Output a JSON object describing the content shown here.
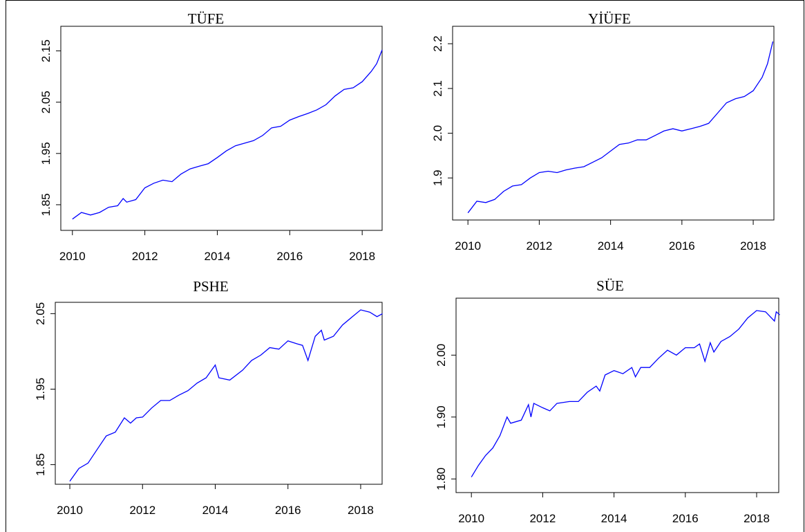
{
  "chart_data": [
    {
      "type": "line",
      "title": "TÜFE",
      "color": "#0000ff",
      "x": [
        2010.0,
        2010.25,
        2010.5,
        2010.75,
        2011.0,
        2011.25,
        2011.4,
        2011.5,
        2011.75,
        2012.0,
        2012.25,
        2012.5,
        2012.75,
        2013.0,
        2013.25,
        2013.5,
        2013.75,
        2014.0,
        2014.25,
        2014.5,
        2014.75,
        2015.0,
        2015.25,
        2015.5,
        2015.75,
        2016.0,
        2016.25,
        2016.5,
        2016.75,
        2017.0,
        2017.25,
        2017.5,
        2017.75,
        2018.0,
        2018.25,
        2018.4,
        2018.55
      ],
      "values": [
        1.822,
        1.835,
        1.83,
        1.835,
        1.845,
        1.848,
        1.862,
        1.855,
        1.86,
        1.883,
        1.892,
        1.898,
        1.895,
        1.91,
        1.92,
        1.925,
        1.93,
        1.942,
        1.955,
        1.965,
        1.97,
        1.975,
        1.985,
        2.0,
        2.003,
        2.015,
        2.022,
        2.028,
        2.035,
        2.045,
        2.062,
        2.075,
        2.078,
        2.09,
        2.11,
        2.125,
        2.152
      ],
      "xlim": [
        2009.68,
        2018.55
      ],
      "xticks": [
        2010,
        2012,
        2014,
        2016,
        2018
      ],
      "ylim": [
        1.8,
        2.198
      ],
      "yticks": [
        1.85,
        1.95,
        2.05,
        2.15
      ]
    },
    {
      "type": "line",
      "title": "YİÜFE",
      "color": "#0000ff",
      "x": [
        2010.0,
        2010.25,
        2010.5,
        2010.75,
        2011.0,
        2011.25,
        2011.5,
        2011.75,
        2012.0,
        2012.25,
        2012.5,
        2012.75,
        2013.0,
        2013.25,
        2013.5,
        2013.75,
        2014.0,
        2014.25,
        2014.5,
        2014.75,
        2015.0,
        2015.25,
        2015.5,
        2015.75,
        2016.0,
        2016.25,
        2016.5,
        2016.75,
        2017.0,
        2017.25,
        2017.5,
        2017.75,
        2018.0,
        2018.25,
        2018.4,
        2018.55
      ],
      "values": [
        1.822,
        1.848,
        1.845,
        1.852,
        1.87,
        1.882,
        1.885,
        1.9,
        1.912,
        1.915,
        1.912,
        1.918,
        1.922,
        1.925,
        1.935,
        1.945,
        1.96,
        1.975,
        1.978,
        1.985,
        1.985,
        1.995,
        2.005,
        2.01,
        2.005,
        2.01,
        2.015,
        2.022,
        2.045,
        2.068,
        2.077,
        2.082,
        2.095,
        2.125,
        2.155,
        2.205
      ],
      "xlim": [
        2009.57,
        2018.58
      ],
      "xticks": [
        2010,
        2012,
        2014,
        2016,
        2018
      ],
      "ylim": [
        1.806,
        2.239
      ],
      "yticks": [
        1.9,
        {
          "value": 2,
          "label": "2.0"
        },
        2.1,
        2.2
      ]
    },
    {
      "type": "line",
      "title": "PSHE",
      "color": "#0000ff",
      "x": [
        2010.0,
        2010.25,
        2010.5,
        2010.75,
        2011.0,
        2011.25,
        2011.5,
        2011.67,
        2011.83,
        2012.0,
        2012.25,
        2012.5,
        2012.75,
        2013.0,
        2013.25,
        2013.5,
        2013.75,
        2014.0,
        2014.1,
        2014.4,
        2014.75,
        2015.0,
        2015.25,
        2015.5,
        2015.75,
        2016.0,
        2016.25,
        2016.4,
        2016.55,
        2016.75,
        2016.92,
        2017.0,
        2017.25,
        2017.5,
        2017.75,
        2018.0,
        2018.25,
        2018.45,
        2018.6
      ],
      "values": [
        1.828,
        1.845,
        1.852,
        1.87,
        1.888,
        1.893,
        1.912,
        1.905,
        1.912,
        1.913,
        1.925,
        1.935,
        1.935,
        1.942,
        1.948,
        1.958,
        1.965,
        1.982,
        1.965,
        1.962,
        1.975,
        1.988,
        1.995,
        2.005,
        2.003,
        2.014,
        2.01,
        2.008,
        1.988,
        2.02,
        2.028,
        2.015,
        2.02,
        2.035,
        2.045,
        2.055,
        2.052,
        2.046,
        2.05
      ],
      "xlim": [
        2009.6,
        2018.59
      ],
      "xticks": [
        2010,
        2012,
        2014,
        2016,
        2018
      ],
      "ylim": [
        1.824,
        2.065
      ],
      "yticks": [
        1.85,
        1.95,
        2.05
      ]
    },
    {
      "type": "line",
      "title": "SÜE",
      "color": "#0000ff",
      "x": [
        2010.0,
        2010.2,
        2010.4,
        2010.6,
        2010.8,
        2011.0,
        2011.1,
        2011.4,
        2011.6,
        2011.67,
        2011.75,
        2012.0,
        2012.2,
        2012.4,
        2012.75,
        2013.0,
        2013.25,
        2013.5,
        2013.6,
        2013.75,
        2014.0,
        2014.25,
        2014.5,
        2014.6,
        2014.75,
        2015.0,
        2015.25,
        2015.5,
        2015.75,
        2016.0,
        2016.25,
        2016.4,
        2016.55,
        2016.7,
        2016.8,
        2017.0,
        2017.25,
        2017.5,
        2017.75,
        2018.0,
        2018.25,
        2018.5,
        2018.55,
        2018.65
      ],
      "values": [
        1.803,
        1.822,
        1.838,
        1.85,
        1.87,
        1.9,
        1.89,
        1.895,
        1.92,
        1.9,
        1.922,
        1.915,
        1.91,
        1.922,
        1.925,
        1.925,
        1.94,
        1.95,
        1.942,
        1.968,
        1.975,
        1.97,
        1.98,
        1.965,
        1.98,
        1.98,
        1.995,
        2.008,
        2.0,
        2.012,
        2.012,
        2.018,
        1.99,
        2.02,
        2.005,
        2.022,
        2.03,
        2.042,
        2.06,
        2.072,
        2.07,
        2.055,
        2.07,
        2.065
      ],
      "xlim": [
        2009.57,
        2018.62
      ],
      "xticks": [
        2010,
        2012,
        2014,
        2016,
        2018
      ],
      "ylim": [
        1.778,
        2.092
      ],
      "yticks": [
        {
          "value": 1.8,
          "label": "1.80"
        },
        {
          "value": 1.9,
          "label": "1.90"
        },
        {
          "value": 2,
          "label": "2.00"
        }
      ]
    }
  ]
}
